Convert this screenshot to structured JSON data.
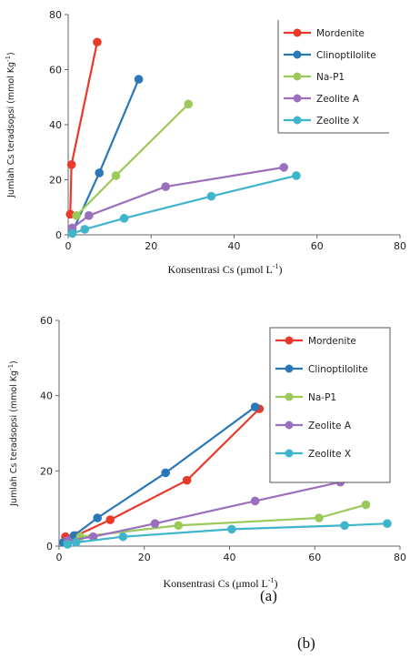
{
  "chart_data": [
    {
      "type": "line",
      "xlabel": "Konsentrasi Cs (μmol L",
      "xlabel_sup": "-1",
      "xlabel_end": ")",
      "ylabel": "Jumlah Cs teradsopsi (mmol Kg",
      "ylabel_sup": "-1",
      "ylabel_end": ")",
      "xlim": [
        0,
        80
      ],
      "ylim": [
        0,
        80
      ],
      "x_ticks": [
        "0",
        "20",
        "40",
        "60",
        "80"
      ],
      "y_ticks": [
        "0",
        "20",
        "40",
        "60",
        "80"
      ],
      "legend_position": "top-right",
      "series": [
        {
          "name": "Mordenite",
          "color": "#e8392b",
          "points": [
            [
              0.5,
              7.5
            ],
            [
              0.8,
              25.5
            ],
            [
              7,
              70
            ]
          ]
        },
        {
          "name": "Clinoptilolite",
          "color": "#2b78b8",
          "points": [
            [
              1,
              1
            ],
            [
              7.5,
              22.5
            ],
            [
              17,
              56.5
            ]
          ]
        },
        {
          "name": "Na-P1",
          "color": "#9bc95a",
          "points": [
            [
              2,
              7
            ],
            [
              11.5,
              21.5
            ],
            [
              29,
              47.5
            ]
          ]
        },
        {
          "name": "Zeolite A",
          "color": "#9a6fbe",
          "points": [
            [
              1,
              2.5
            ],
            [
              5,
              7
            ],
            [
              23.5,
              17.5
            ],
            [
              52,
              24.5
            ]
          ]
        },
        {
          "name": "Zeolite X",
          "color": "#3fb5cc",
          "points": [
            [
              1,
              0.5
            ],
            [
              4,
              2
            ],
            [
              13.5,
              6
            ],
            [
              34.5,
              14
            ],
            [
              55,
              21.5
            ]
          ]
        }
      ]
    },
    {
      "type": "line",
      "xlabel": "Konsentrasi Cs (μmol L",
      "xlabel_sup": "-1",
      "xlabel_end": ")",
      "ylabel": "Jumlah Cs teradsopsi (mmol Kg",
      "ylabel_sup": "-1",
      "ylabel_end": ")",
      "xlim": [
        0,
        80
      ],
      "ylim": [
        0,
        60
      ],
      "x_ticks": [
        "0",
        "20",
        "40",
        "60",
        "80"
      ],
      "y_ticks": [
        "0",
        "20",
        "40",
        "60"
      ],
      "legend_position": "top-right",
      "series": [
        {
          "name": "Mordenite",
          "color": "#e8392b",
          "points": [
            [
              1.5,
              2.5
            ],
            [
              4,
              2.8
            ],
            [
              12,
              7
            ],
            [
              30,
              17.5
            ],
            [
              47,
              36.5
            ]
          ]
        },
        {
          "name": "Clinoptilolite",
          "color": "#2b78b8",
          "points": [
            [
              1,
              1
            ],
            [
              3.5,
              2.8
            ],
            [
              9,
              7.5
            ],
            [
              25,
              19.5
            ],
            [
              46,
              37
            ]
          ]
        },
        {
          "name": "Na-P1",
          "color": "#9bc95a",
          "points": [
            [
              2,
              1
            ],
            [
              5,
              2.5
            ],
            [
              28,
              5.5
            ],
            [
              61,
              7.5
            ],
            [
              72,
              11
            ]
          ]
        },
        {
          "name": "Zeolite A",
          "color": "#9a6fbe",
          "points": [
            [
              2,
              1.5
            ],
            [
              8,
              2.5
            ],
            [
              22.5,
              6
            ],
            [
              46,
              12
            ],
            [
              66,
              17
            ]
          ]
        },
        {
          "name": "Zeolite X",
          "color": "#3fb5cc",
          "points": [
            [
              2,
              0.5
            ],
            [
              4,
              1
            ],
            [
              15,
              2.5
            ],
            [
              40.5,
              4.5
            ],
            [
              67,
              5.5
            ],
            [
              77,
              6
            ]
          ]
        }
      ]
    }
  ],
  "captions": {
    "a": "(a)",
    "b": "(b)"
  }
}
